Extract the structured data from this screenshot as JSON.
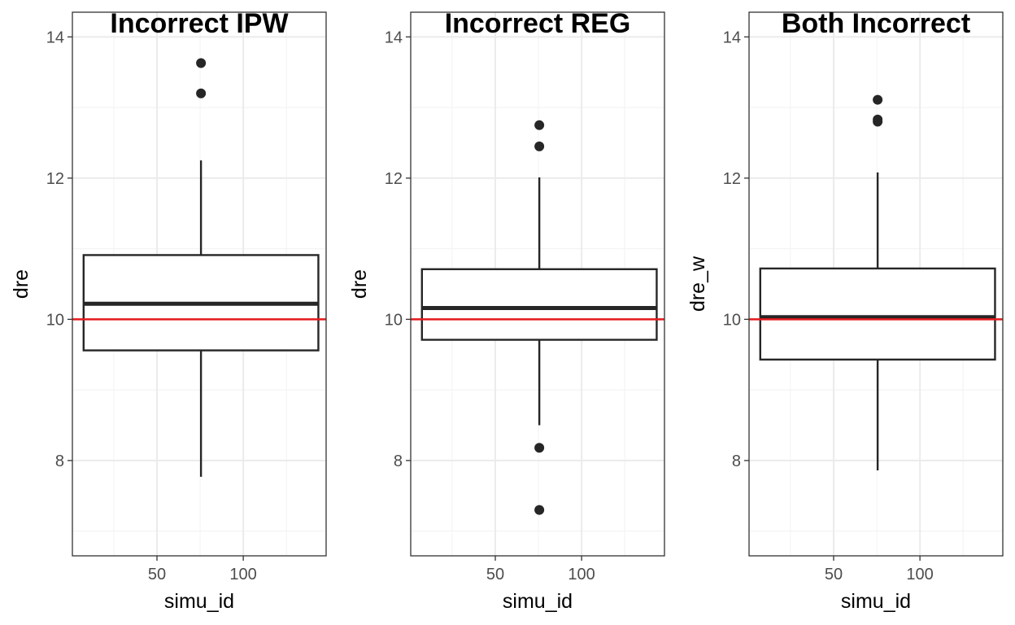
{
  "chart_data": [
    {
      "type": "boxplot",
      "title": "Incorrect IPW",
      "xlabel": "simu_id",
      "ylabel": "dre",
      "xlim": [
        1,
        148
      ],
      "ylim": [
        6.65,
        14.35
      ],
      "xticks": [
        50,
        100
      ],
      "yticks": [
        8,
        10,
        12,
        14
      ],
      "reference_line": 10,
      "box": {
        "x": 75.5,
        "x_min": 7.5,
        "x_max": 143.5,
        "whisker_low": 7.77,
        "q1": 9.56,
        "median": 10.22,
        "q3": 10.91,
        "whisker_high": 12.25
      },
      "outliers": [
        13.63,
        13.2
      ],
      "grid": true
    },
    {
      "type": "boxplot",
      "title": "Incorrect REG",
      "xlabel": "simu_id",
      "ylabel": "dre",
      "xlim": [
        1,
        148
      ],
      "ylim": [
        6.65,
        14.35
      ],
      "xticks": [
        50,
        100
      ],
      "yticks": [
        8,
        10,
        12,
        14
      ],
      "reference_line": 10,
      "box": {
        "x": 75.5,
        "x_min": 7.5,
        "x_max": 143.5,
        "whisker_low": 8.5,
        "q1": 9.71,
        "median": 10.16,
        "q3": 10.71,
        "whisker_high": 12.01
      },
      "outliers": [
        12.75,
        12.45,
        8.18,
        7.3
      ],
      "grid": true
    },
    {
      "type": "boxplot",
      "title": "Both Incorrect",
      "xlabel": "simu_id",
      "ylabel": "dre_w",
      "xlim": [
        1,
        148
      ],
      "ylim": [
        6.65,
        14.35
      ],
      "xticks": [
        50,
        100
      ],
      "yticks": [
        8,
        10,
        12,
        14
      ],
      "reference_line": 10,
      "box": {
        "x": 75.5,
        "x_min": 7.5,
        "x_max": 143.5,
        "whisker_low": 7.86,
        "q1": 9.43,
        "median": 10.03,
        "q3": 10.72,
        "whisker_high": 12.08
      },
      "outliers": [
        13.11,
        12.83,
        12.8
      ],
      "grid": true
    }
  ],
  "colors": {
    "reference_line": "#e41a1c",
    "box_stroke": "#262626",
    "outlier": "#262626",
    "grid_major": "#ebebeb",
    "grid_minor": "#f4f4f4",
    "panel_border": "#333333",
    "tick_text": "#4d4d4d"
  }
}
